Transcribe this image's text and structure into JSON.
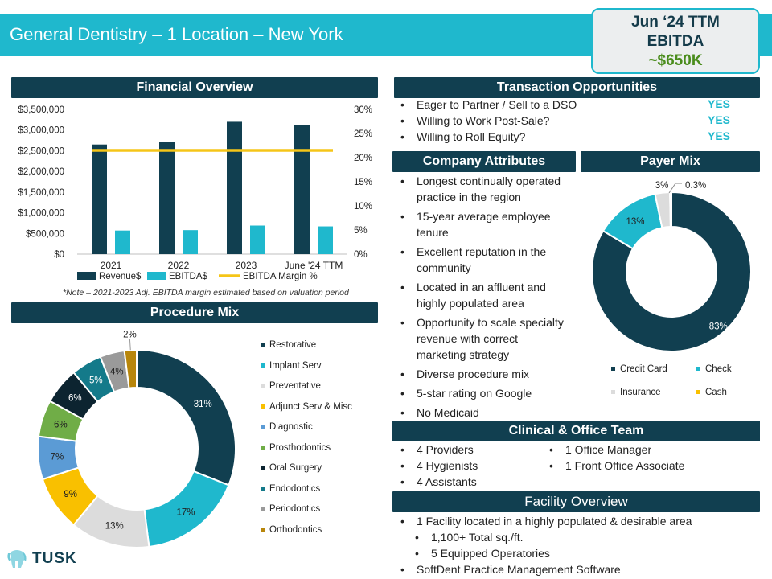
{
  "header": {
    "title": "General Dentistry – 1 Location – New York"
  },
  "ebitda_box": {
    "line1": "Jun ‘24 TTM",
    "line2": "EBITDA",
    "line3": "~$650K"
  },
  "sections": {
    "financial": "Financial Overview",
    "procedure": "Procedure Mix",
    "transaction": "Transaction Opportunities",
    "attributes": "Company Attributes",
    "payer": "Payer Mix",
    "team": "Clinical & Office Team",
    "facility": "Facility Overview"
  },
  "transaction": [
    {
      "text": "Eager to Partner / Sell to a DSO",
      "answer": "YES"
    },
    {
      "text": "Willing to Work Post-Sale?",
      "answer": "YES"
    },
    {
      "text": "Willing to Roll Equity?",
      "answer": "YES"
    }
  ],
  "attributes": [
    {
      "l1": "Longest continually operated",
      "l2": "practice in the region"
    },
    {
      "l1": "15-year average employee",
      "l2": "tenure"
    },
    {
      "l1": "Excellent reputation in the",
      "l2": "community"
    },
    {
      "l1": "Located in an affluent and",
      "l2": "highly populated area"
    },
    {
      "l1": "Opportunity to scale specialty",
      "l2": "revenue with correct",
      "l3": "marketing strategy"
    },
    {
      "l1": "Diverse procedure mix"
    },
    {
      "l1": "5-star rating on Google"
    },
    {
      "l1": "No Medicaid"
    }
  ],
  "team": {
    "left": [
      "4 Providers",
      "4 Hygienists",
      "4 Assistants"
    ],
    "right": [
      "1 Office Manager",
      "1 Front Office Associate"
    ]
  },
  "facility": {
    "item1": "1 Facility located in a highly populated & desirable area",
    "sub1": "1,100+ Total sq./ft.",
    "sub2": "5 Equipped Operatories",
    "item2": "SoftDent Practice Management Software"
  },
  "note": "*Note – 2021-2023 Adj. EBITDA margin estimated based on valuation period",
  "logo": {
    "text": "TUSK"
  },
  "colors": {
    "navy": "#113f50",
    "teal": "#1fb8cd",
    "yellow": "#f5c518",
    "green_accent": "#4a8c1c"
  },
  "chart_data": [
    {
      "type": "bar",
      "categories": [
        "2021",
        "2022",
        "2023",
        "June '24 TTM"
      ],
      "series": [
        {
          "name": "Revenue$",
          "values": [
            2650000,
            2720000,
            3200000,
            3120000
          ],
          "color": "#113f50",
          "axis": "left"
        },
        {
          "name": "EBITDA$",
          "values": [
            570000,
            580000,
            690000,
            670000
          ],
          "color": "#1fb8cd",
          "axis": "left"
        },
        {
          "name": "EBITDA Margin %",
          "type": "line",
          "values": [
            21.5,
            21.5,
            21.5,
            21.5
          ],
          "color": "#f5c518",
          "axis": "right"
        }
      ],
      "y_ticks": [
        "$3,500,000",
        "$3,000,000",
        "$2,500,000",
        "$2,000,000",
        "$1,500,000",
        "$1,000,000",
        "$500,000",
        "$0"
      ],
      "y2_ticks": [
        "30%",
        "25%",
        "20%",
        "15%",
        "10%",
        "5%",
        "0%"
      ],
      "ylim": [
        0,
        3500000
      ],
      "y2lim": [
        0,
        30
      ],
      "legend": "bottom",
      "grid": false
    },
    {
      "type": "pie",
      "variant": "donut",
      "slices": [
        {
          "name": "Restorative",
          "value": 31,
          "label": "31%",
          "color": "#113f50"
        },
        {
          "name": "Implant Serv",
          "value": 17,
          "label": "17%",
          "color": "#1fb8cd"
        },
        {
          "name": "Preventative",
          "value": 13,
          "label": "13%",
          "color": "#dcdcdc"
        },
        {
          "name": "Adjunct Serv & Misc",
          "value": 9,
          "label": "9%",
          "color": "#f9c000"
        },
        {
          "name": "Diagnostic",
          "value": 7,
          "label": "7%",
          "color": "#5b9bd5"
        },
        {
          "name": "Prosthodontics",
          "value": 6,
          "label": "6%",
          "color": "#70ad47"
        },
        {
          "name": "Oral Surgery",
          "value": 6,
          "label": "6%",
          "color": "#0c2430"
        },
        {
          "name": "Endodontics",
          "value": 5,
          "label": "5%",
          "color": "#147a8a"
        },
        {
          "name": "Periodontics",
          "value": 4,
          "label": "4%",
          "color": "#9a9a9a"
        },
        {
          "name": "Orthodontics",
          "value": 2,
          "label": "2%",
          "color": "#b8860b"
        }
      ],
      "legend": "right"
    },
    {
      "type": "pie",
      "variant": "donut",
      "slices": [
        {
          "name": "Credit Card",
          "value": 83,
          "label": "83%",
          "color": "#113f50"
        },
        {
          "name": "Check",
          "value": 13,
          "label": "13%",
          "color": "#1fb8cd"
        },
        {
          "name": "Insurance",
          "value": 3,
          "label": "3%",
          "color": "#dcdcdc"
        },
        {
          "name": "Cash",
          "value": 0.3,
          "label": "0.3%",
          "color": "#f9c000"
        }
      ],
      "legend": "bottom"
    }
  ]
}
